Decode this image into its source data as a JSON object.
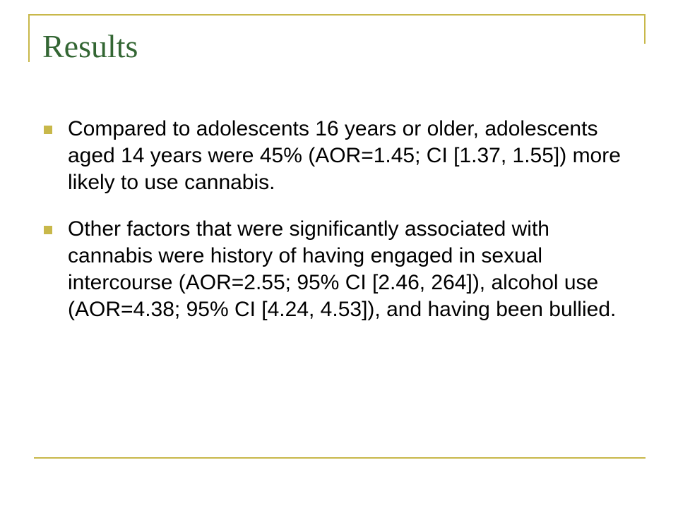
{
  "slide": {
    "title": "Results",
    "bullets": [
      {
        "text": "Compared to adolescents 16 years or older, adolescents aged 14 years were 45% (AOR=1.45; CI [1.37, 1.55]) more likely to use cannabis."
      },
      {
        "text": "Other factors that were significantly associated with cannabis were history of having engaged in sexual intercourse (AOR=2.55; 95% CI [2.46, 264]), alcohol use (AOR=4.38; 95% CI [4.24, 4.53]), and having been bullied."
      }
    ]
  },
  "colors": {
    "title": "#336633",
    "accent": "#c8b84a",
    "text": "#000000"
  },
  "icons": {
    "bullet": "square-bullet-icon"
  }
}
